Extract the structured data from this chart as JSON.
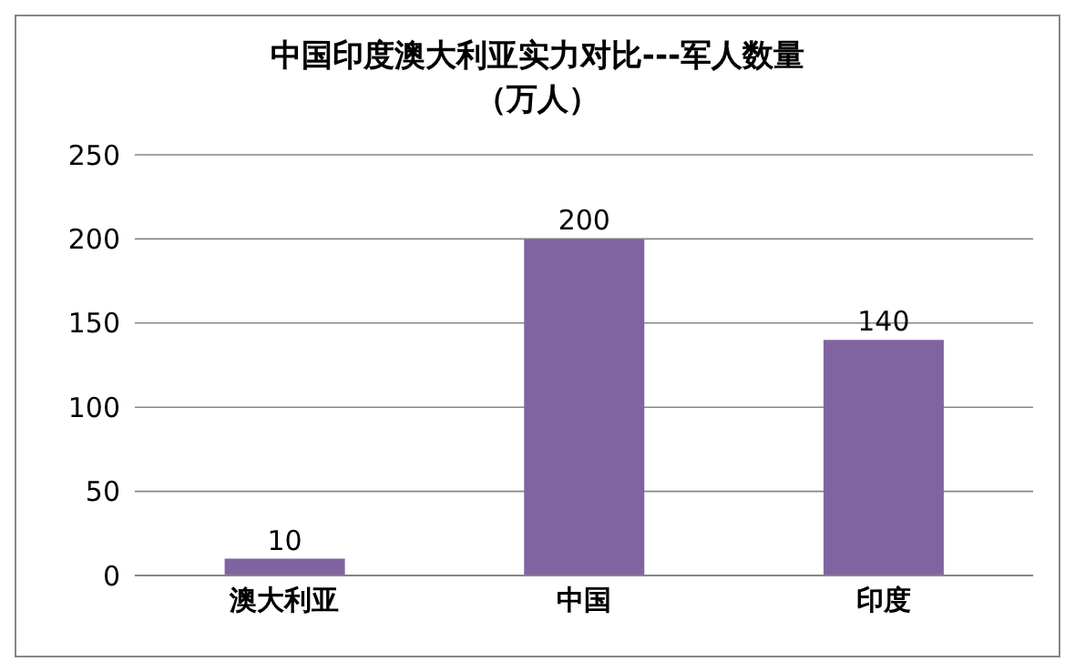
{
  "chart_data": {
    "type": "bar",
    "title": "中国印度澳大利亚实力对比---军人数量（万人）",
    "categories": [
      "澳大利亚",
      "中国",
      "印度"
    ],
    "values": [
      10,
      200,
      140
    ],
    "color": "#8064a2",
    "ylim": [
      0,
      250
    ],
    "yticks": [
      0,
      50,
      100,
      150,
      200,
      250
    ],
    "grid": "y",
    "data_labels": true,
    "legend": false
  }
}
